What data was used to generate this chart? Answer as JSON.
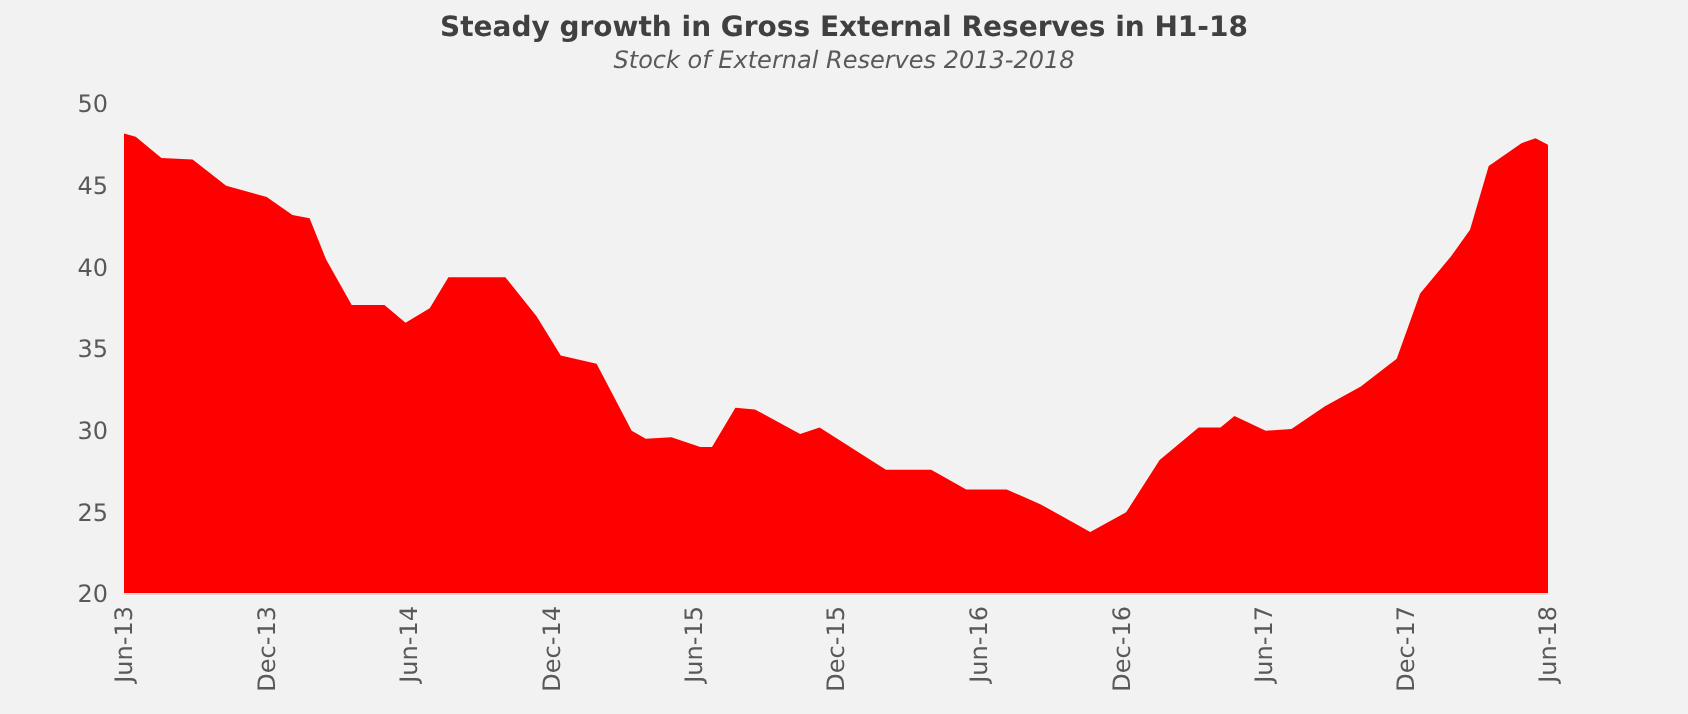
{
  "chart_data": {
    "type": "area",
    "title": "Steady growth in Gross External Reserves in H1-18",
    "subtitle": "Stock of External Reserves 2013-2018",
    "color": "#ff0000",
    "x": [
      "2013-06-01",
      "2013-06-16",
      "2013-07-19",
      "2013-08-28",
      "2013-10-10",
      "2013-12-01",
      "2014-01-03",
      "2014-01-25",
      "2014-02-15",
      "2014-03-20",
      "2014-05-01",
      "2014-05-28",
      "2014-06-28",
      "2014-07-22",
      "2014-10-03",
      "2014-11-12",
      "2014-12-13",
      "2015-01-28",
      "2015-03-14",
      "2015-04-01",
      "2015-05-04",
      "2015-06-10",
      "2015-06-25",
      "2015-07-25",
      "2015-08-19",
      "2015-10-16",
      "2015-11-10",
      "2016-02-03",
      "2016-04-01",
      "2016-05-16",
      "2016-07-07",
      "2016-08-19",
      "2016-10-22",
      "2016-12-07",
      "2017-01-19",
      "2017-03-10",
      "2017-04-07",
      "2017-04-25",
      "2017-06-04",
      "2017-07-07",
      "2017-08-19",
      "2017-10-04",
      "2017-11-19",
      "2017-12-19",
      "2018-01-28",
      "2018-02-21",
      "2018-03-17",
      "2018-04-28",
      "2018-05-16",
      "2018-06-01"
    ],
    "values": [
      48.2,
      48.0,
      46.7,
      46.6,
      45.0,
      44.3,
      43.2,
      43.0,
      40.5,
      37.7,
      37.7,
      36.6,
      37.5,
      39.4,
      39.4,
      37.0,
      34.6,
      34.1,
      30.0,
      29.5,
      29.6,
      29.0,
      29.0,
      31.4,
      31.3,
      29.8,
      30.2,
      27.6,
      27.6,
      26.4,
      26.4,
      25.5,
      23.8,
      25.0,
      28.2,
      30.2,
      30.2,
      30.9,
      30.0,
      30.1,
      31.5,
      32.7,
      34.4,
      38.4,
      40.7,
      42.3,
      46.2,
      47.6,
      47.9,
      47.5
    ],
    "xlim": [
      "2013-06-01",
      "2018-06-01"
    ],
    "xticks": [
      {
        "value": "2013-06-01",
        "label": "Jun-13"
      },
      {
        "value": "2013-12-01",
        "label": "Dec-13"
      },
      {
        "value": "2014-06-01",
        "label": "Jun-14"
      },
      {
        "value": "2014-12-01",
        "label": "Dec-14"
      },
      {
        "value": "2015-06-01",
        "label": "Jun-15"
      },
      {
        "value": "2015-12-01",
        "label": "Dec-15"
      },
      {
        "value": "2016-06-01",
        "label": "Jun-16"
      },
      {
        "value": "2016-12-01",
        "label": "Dec-16"
      },
      {
        "value": "2017-06-01",
        "label": "Jun-17"
      },
      {
        "value": "2017-12-01",
        "label": "Dec-17"
      },
      {
        "value": "2018-06-01",
        "label": "Jun-18"
      }
    ],
    "ylim": [
      20,
      50
    ],
    "yticks": [
      20,
      25,
      30,
      35,
      40,
      45,
      50
    ]
  }
}
